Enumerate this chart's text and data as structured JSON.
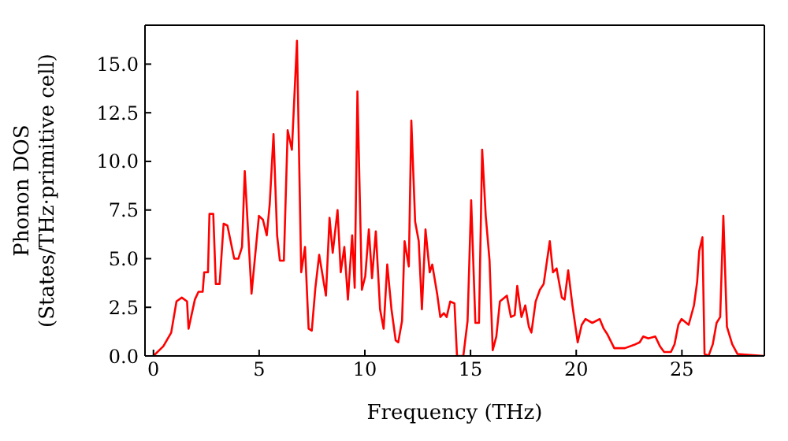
{
  "chart_data": {
    "type": "line",
    "xlabel": "Frequency (THz)",
    "ylabel": "Phonon DOS\n(States/THz·primitive cell)",
    "x": [
      0,
      0.47,
      0.84,
      1.09,
      1.34,
      1.59,
      1.66,
      1.96,
      2.13,
      2.33,
      2.4,
      2.58,
      2.65,
      2.83,
      2.95,
      3.13,
      3.32,
      3.5,
      3.82,
      4.02,
      4.19,
      4.32,
      4.64,
      4.99,
      5.18,
      5.36,
      5.5,
      5.68,
      5.85,
      5.98,
      6.17,
      6.35,
      6.55,
      6.79,
      6.99,
      7.17,
      7.34,
      7.49,
      7.66,
      7.84,
      8.16,
      8.33,
      8.48,
      8.71,
      8.86,
      9.03,
      9.2,
      9.4,
      9.52,
      9.65,
      9.86,
      10.02,
      10.19,
      10.34,
      10.52,
      10.72,
      10.89,
      11.06,
      11.26,
      11.46,
      11.58,
      11.76,
      11.88,
      12.08,
      12.2,
      12.38,
      12.55,
      12.7,
      12.87,
      13.07,
      13.19,
      13.42,
      13.57,
      13.74,
      13.87,
      14.04,
      14.24,
      14.36,
      14.66,
      14.86,
      15.03,
      15.23,
      15.4,
      15.55,
      15.72,
      15.9,
      16.05,
      16.22,
      16.39,
      16.72,
      16.91,
      17.09,
      17.21,
      17.41,
      17.59,
      17.76,
      17.88,
      18.08,
      18.28,
      18.46,
      18.75,
      18.9,
      19.07,
      19.32,
      19.45,
      19.62,
      19.82,
      20.07,
      20.26,
      20.44,
      20.76,
      21.11,
      21.3,
      21.48,
      21.8,
      22.3,
      22.8,
      23.0,
      23.17,
      23.41,
      23.74,
      23.96,
      24.16,
      24.48,
      24.65,
      24.83,
      24.98,
      25.32,
      25.57,
      25.72,
      25.82,
      25.97,
      26.07,
      26.26,
      26.46,
      26.64,
      26.81,
      26.96,
      27.13,
      27.38,
      27.63,
      28.87
    ],
    "series": [
      {
        "color": "#ff0000",
        "values": [
          0,
          0.5,
          1.2,
          2.8,
          3.0,
          2.8,
          1.4,
          2.9,
          3.3,
          3.3,
          4.3,
          4.3,
          7.3,
          7.3,
          3.7,
          3.7,
          6.8,
          6.7,
          5.0,
          5.0,
          5.6,
          9.5,
          3.2,
          7.2,
          7.0,
          6.2,
          7.8,
          11.4,
          6.2,
          4.9,
          4.9,
          11.6,
          10.6,
          16.2,
          4.3,
          5.6,
          1.4,
          1.3,
          3.5,
          5.2,
          3.1,
          7.1,
          5.3,
          7.5,
          4.3,
          5.6,
          2.9,
          6.2,
          3.5,
          13.6,
          3.4,
          4.1,
          6.5,
          4.0,
          6.4,
          2.4,
          1.4,
          4.7,
          2.4,
          0.8,
          0.7,
          1.8,
          5.9,
          4.6,
          12.1,
          6.9,
          5.9,
          2.4,
          6.5,
          4.3,
          4.7,
          3.2,
          2.0,
          2.2,
          2.0,
          2.8,
          2.7,
          0,
          0,
          1.8,
          8.0,
          1.7,
          1.7,
          10.6,
          7.2,
          4.9,
          0.3,
          1.0,
          2.8,
          3.1,
          2.0,
          2.1,
          3.6,
          2.0,
          2.6,
          1.5,
          1.2,
          2.8,
          3.4,
          3.7,
          5.9,
          4.3,
          4.5,
          3.0,
          2.9,
          4.4,
          2.6,
          0.7,
          1.6,
          1.9,
          1.7,
          1.9,
          1.4,
          1.1,
          0.4,
          0.4,
          0.6,
          0.7,
          1.0,
          0.9,
          1.0,
          0.5,
          0.2,
          0.2,
          0.6,
          1.6,
          1.9,
          1.6,
          2.6,
          3.8,
          5.4,
          6.1,
          0.1,
          0,
          0.6,
          1.7,
          2.0,
          7.2,
          1.5,
          0.6,
          0.1,
          0
        ]
      }
    ],
    "xlim": [
      -0.4,
      28.9
    ],
    "xticks": [
      0,
      5,
      10,
      15,
      20,
      25
    ],
    "ylim": [
      0,
      17
    ],
    "yticks": [
      {
        "value": 0,
        "label": "0.0"
      },
      {
        "value": 2.5,
        "label": "2.5"
      },
      {
        "value": 5,
        "label": "5.0"
      },
      {
        "value": 7.5,
        "label": "7.5"
      },
      {
        "value": 10,
        "label": "10.0"
      },
      {
        "value": 12.5,
        "label": "12.5"
      },
      {
        "value": 15,
        "label": "15.0"
      }
    ],
    "grid": false,
    "legend": false,
    "marker": "none",
    "line_style": "solid"
  }
}
